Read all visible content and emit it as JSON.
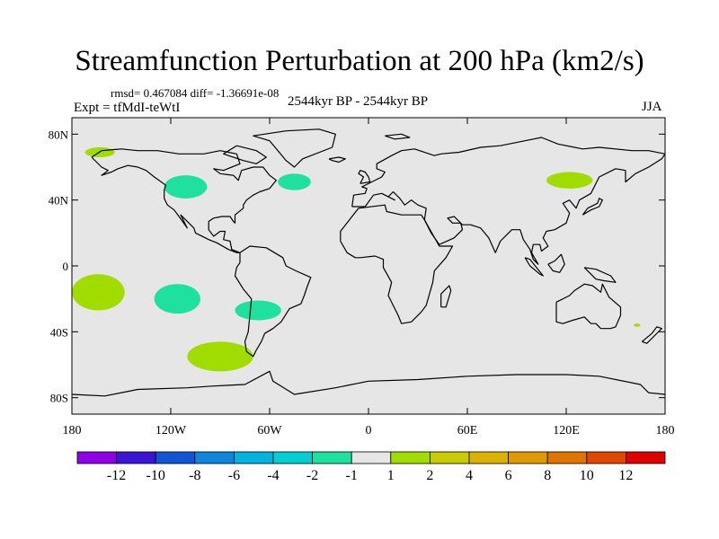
{
  "title": "Streamfunction Perturbation at 200 hPa (km2/s)",
  "stats": "rmsd= 0.467084 diff= -1.36691e-08",
  "experiment": "Expt = tfMdI-teWtI",
  "period": "2544kyr BP - 2544kyr BP",
  "season": "JJA",
  "map": {
    "projection": "cylindrical equidistant",
    "background_color": "#e6e6e6",
    "coastline_color": "#000000",
    "lon_range": [
      -180,
      180
    ],
    "lat_range": [
      -90,
      90
    ],
    "y_ticks": [
      {
        "lat": 80,
        "label": "80N"
      },
      {
        "lat": 40,
        "label": "40N"
      },
      {
        "lat": 0,
        "label": "0"
      },
      {
        "lat": -40,
        "label": "40S"
      },
      {
        "lat": -80,
        "label": "80S"
      }
    ],
    "x_ticks": [
      {
        "lon": -180,
        "label": "180"
      },
      {
        "lon": -120,
        "label": "120W"
      },
      {
        "lon": -60,
        "label": "60W"
      },
      {
        "lon": 0,
        "label": "0"
      },
      {
        "lon": 60,
        "label": "60E"
      },
      {
        "lon": 120,
        "label": "120E"
      },
      {
        "lon": 180,
        "label": "180"
      }
    ],
    "anomaly_patches": [
      {
        "name": "alaska-positive",
        "lon": -163,
        "lat": 69,
        "rx": 9,
        "ry": 3,
        "color": "#a0dc00"
      },
      {
        "name": "north-america-negative",
        "lon": -111,
        "lat": 48,
        "rx": 13,
        "ry": 7,
        "color": "#1ee09f"
      },
      {
        "name": "north-atlantic-negative",
        "lon": -45,
        "lat": 51,
        "rx": 10,
        "ry": 5,
        "color": "#1ee09f"
      },
      {
        "name": "siberia-positive",
        "lon": 122,
        "lat": 52,
        "rx": 14,
        "ry": 5,
        "color": "#a0dc00"
      },
      {
        "name": "south-pacific-west-positive",
        "lon": -164,
        "lat": -16,
        "rx": 16,
        "ry": 11,
        "color": "#a0dc00"
      },
      {
        "name": "south-pacific-central-negative",
        "lon": -116,
        "lat": -20,
        "rx": 14,
        "ry": 9,
        "color": "#1ee09f"
      },
      {
        "name": "south-america-negative",
        "lon": -67,
        "lat": -27,
        "rx": 14,
        "ry": 6,
        "color": "#1ee09f"
      },
      {
        "name": "southern-ocean-positive",
        "lon": -90,
        "lat": -55,
        "rx": 20,
        "ry": 9,
        "color": "#a0dc00"
      },
      {
        "name": "new-caledonia-positive",
        "lon": 163,
        "lat": -36,
        "rx": 2,
        "ry": 1,
        "color": "#a0dc00"
      }
    ]
  },
  "colorbar": {
    "colors": [
      "#8f00e8",
      "#3b14d8",
      "#0f55d6",
      "#0d86dc",
      "#00b4e0",
      "#00d0d4",
      "#1ee09f",
      "#e6e6e6",
      "#a0dc00",
      "#c9cc00",
      "#dcb200",
      "#e09a00",
      "#e07400",
      "#e04800",
      "#e00000"
    ],
    "labels": [
      "-12",
      "-10",
      "-8",
      "-6",
      "-4",
      "-2",
      "-1",
      "1",
      "2",
      "4",
      "6",
      "8",
      "10",
      "12"
    ]
  }
}
